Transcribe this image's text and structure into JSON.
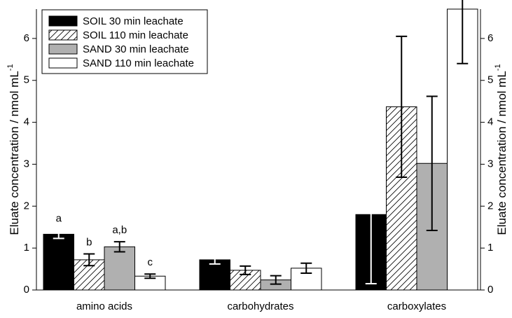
{
  "chart_data": {
    "type": "bar",
    "y_label": "Eluate concentration / nmol mL",
    "y_label_sup": "-1",
    "categories": [
      "amino acids",
      "carbohydrates",
      "carboxylates"
    ],
    "series": [
      {
        "name": "SOIL 30 min leachate",
        "color": "#000000",
        "values": [
          1.33,
          0.72,
          1.8
        ],
        "errors": [
          0.1,
          0.1,
          1.65
        ]
      },
      {
        "name": "SOIL 110 min leachate",
        "color": "#ffffff",
        "pattern": "hatch",
        "values": [
          0.72,
          0.47,
          4.37
        ],
        "errors": [
          0.14,
          0.1,
          1.68
        ]
      },
      {
        "name": "SAND 30 min leachate",
        "color": "#b0b0b0",
        "values": [
          1.03,
          0.24,
          3.02
        ],
        "errors": [
          0.12,
          0.1,
          1.6
        ]
      },
      {
        "name": "SAND 110 min leachate",
        "color": "#ffffff",
        "values": [
          0.33,
          0.52,
          6.7
        ],
        "errors": [
          0.05,
          0.12,
          1.3
        ]
      }
    ],
    "annotations": [
      "a",
      "b",
      "a,b",
      "c"
    ],
    "ylim": [
      0,
      6.7
    ],
    "yticks": [
      0,
      1,
      2,
      3,
      4,
      5,
      6
    ],
    "y2lim": [
      0,
      6.7
    ],
    "y2ticks": [
      0,
      1,
      2,
      3,
      4,
      5,
      6
    ],
    "legend": "upper left"
  }
}
